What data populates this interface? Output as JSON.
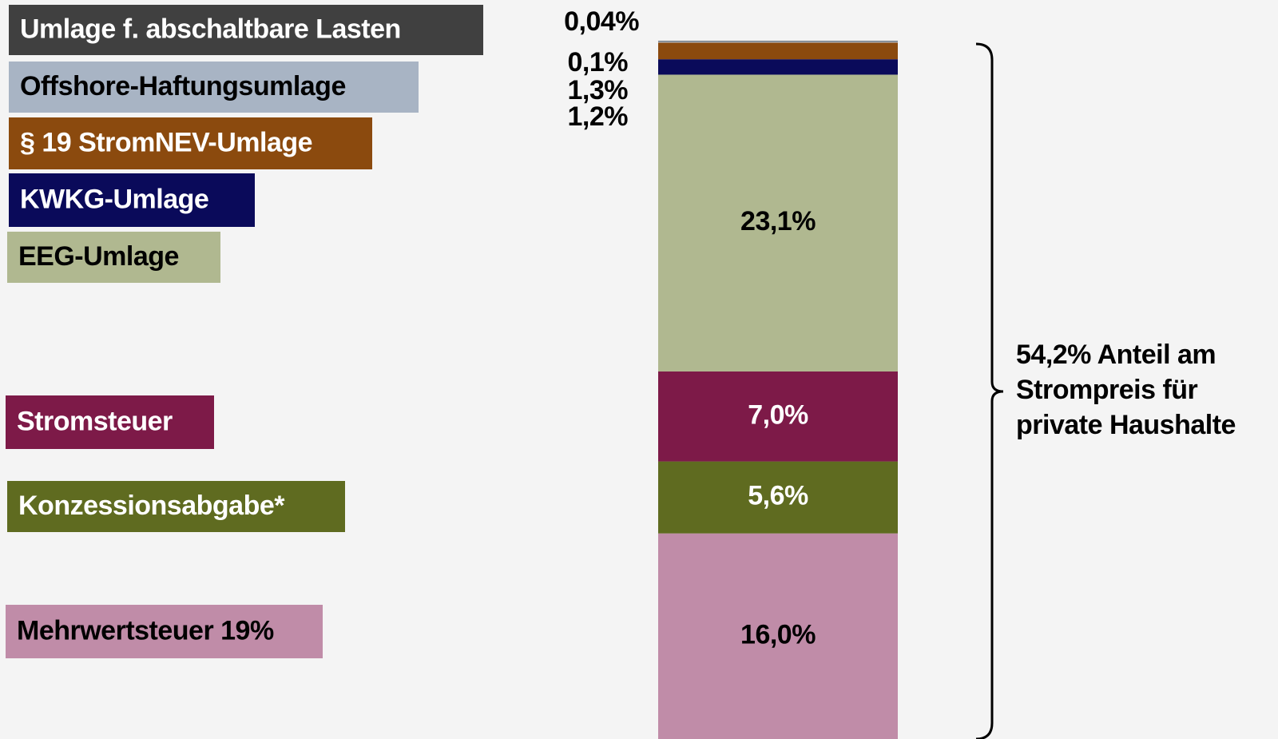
{
  "chart_data": {
    "type": "stacked-bar",
    "categories": [
      null
    ],
    "series": [
      {
        "name": "Mehrwertsteuer 19%",
        "color": "#c08ca8",
        "values": [
          16.0
        ],
        "value_labels": [
          "16,0%"
        ]
      },
      {
        "name": "Konzessionsabgabe*",
        "color": "#5f6b20",
        "values": [
          5.6
        ],
        "value_labels": [
          "5,6%"
        ]
      },
      {
        "name": "Stromsteuer",
        "color": "#7d1a48",
        "values": [
          7.0
        ],
        "value_labels": [
          "7,0%"
        ]
      },
      {
        "name": "EEG-Umlage",
        "color": "#b0b890",
        "values": [
          23.1
        ],
        "value_labels": [
          "23,1%"
        ]
      },
      {
        "name": "KWKG-Umlage",
        "color": "#0a0a5a",
        "values": [
          1.2
        ],
        "value_labels": [
          "1,2%"
        ]
      },
      {
        "name": "§ 19 StromNEV-Umlage",
        "color": "#8b4a0e",
        "values": [
          1.3
        ],
        "value_labels": [
          "1,3%"
        ]
      },
      {
        "name": "Offshore-Haftungsumlage",
        "color": "#a8b4c4",
        "values": [
          0.1
        ],
        "value_labels": [
          "0,1%"
        ]
      },
      {
        "name": "Umlage f. abschaltbare Lasten",
        "color": "#404040",
        "values": [
          0.04
        ],
        "value_labels": [
          "0,04%"
        ]
      }
    ],
    "annotation": [
      "54,2% Anteil am",
      "Strompreis für",
      "private Haushalte"
    ]
  }
}
